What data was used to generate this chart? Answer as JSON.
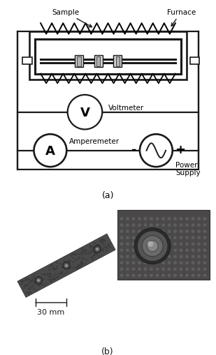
{
  "title_a": "(a)",
  "title_b": "(b)",
  "label_sample": "Sample",
  "label_furnace": "Furnace",
  "label_voltmeter": "Voltmeter",
  "label_amperemeter": "Amperemeter",
  "label_power_supply": "Power\nSupply",
  "label_v": "V",
  "label_a": "A",
  "label_minus": "-",
  "label_plus": "+",
  "label_30mm": "30 mm",
  "bg_color": "#ffffff",
  "line_color": "#1a1a1a",
  "fig_width": 3.09,
  "fig_height": 5.1,
  "dpi": 100
}
